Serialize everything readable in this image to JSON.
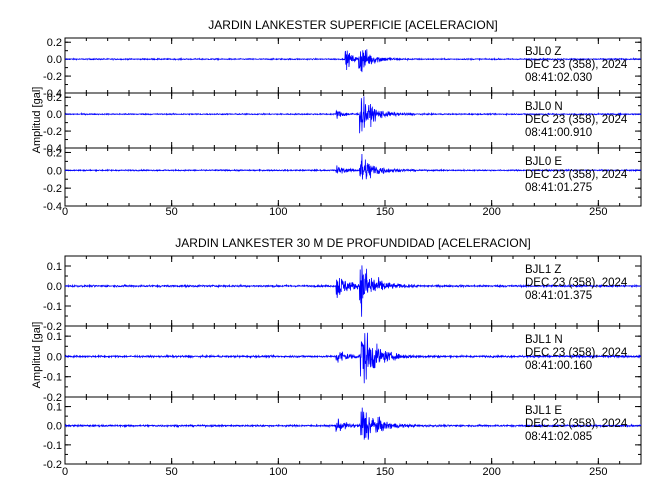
{
  "chart_data": [
    {
      "type": "line",
      "title": "JARDIN LANKESTER SUPERFICIE [ACELERACION]",
      "ylabel": "Amplitud [gal]",
      "xlim": [
        0,
        270
      ],
      "x_ticks": [
        "0",
        "50",
        "100",
        "150",
        "200",
        "250"
      ],
      "series": [
        {
          "name": "BJL0 Z",
          "date": "DEC 23 (358), 2024",
          "time": "08:41:02.030",
          "ylim": [
            -0.4,
            0.25
          ],
          "y_ticks": [
            "0.2",
            "0.0",
            "-0.2",
            "-0.4"
          ],
          "noise": 0.006,
          "events": [
            {
              "t": 131,
              "peak": 0.13,
              "decay": 3
            },
            {
              "t": 137.5,
              "peak": 0.2,
              "decay": 5
            }
          ]
        },
        {
          "name": "BJL0 N",
          "date": "DEC 23 (358), 2024",
          "time": "08:41:00.910",
          "ylim": [
            -0.4,
            0.25
          ],
          "y_ticks": [
            "0.2",
            "0.0",
            "-0.2",
            "-0.4"
          ],
          "noise": 0.006,
          "events": [
            {
              "t": 127,
              "peak": 0.05,
              "decay": 4
            },
            {
              "t": 138,
              "peak": 0.22,
              "decay": 6
            }
          ]
        },
        {
          "name": "BJL0 E",
          "date": "DEC 23 (358), 2024",
          "time": "08:41:01.275",
          "ylim": [
            -0.4,
            0.25
          ],
          "y_ticks": [
            "0.2",
            "0.0",
            "-0.2",
            "-0.4"
          ],
          "noise": 0.006,
          "events": [
            {
              "t": 127,
              "peak": 0.05,
              "decay": 4
            },
            {
              "t": 138,
              "peak": 0.2,
              "decay": 6
            }
          ]
        }
      ]
    },
    {
      "type": "line",
      "title": "JARDIN LANKESTER 30 M DE PROFUNDIDAD [ACELERACION]",
      "ylabel": "Amplitud [gal]",
      "xlim": [
        0,
        270
      ],
      "x_ticks": [
        "0",
        "50",
        "100",
        "150",
        "200",
        "250"
      ],
      "series": [
        {
          "name": "BJL1 Z",
          "date": "DEC 23 (358), 2024",
          "time": "08:41:01.375",
          "ylim": [
            -0.2,
            0.15
          ],
          "y_ticks": [
            "0.1",
            "0.0",
            "-0.1",
            "-0.2"
          ],
          "noise": 0.004,
          "events": [
            {
              "t": 127,
              "peak": 0.07,
              "decay": 5
            },
            {
              "t": 138,
              "peak": 0.13,
              "decay": 6
            }
          ]
        },
        {
          "name": "BJL1 N",
          "date": "DEC 23 (358), 2024",
          "time": "08:41:00.160",
          "ylim": [
            -0.2,
            0.15
          ],
          "y_ticks": [
            "0.1",
            "0.0",
            "-0.1",
            "-0.2"
          ],
          "noise": 0.004,
          "events": [
            {
              "t": 127,
              "peak": 0.04,
              "decay": 5
            },
            {
              "t": 138.5,
              "peak": 0.16,
              "decay": 6
            }
          ]
        },
        {
          "name": "BJL1 E",
          "date": "DEC 23 (358), 2024",
          "time": "08:41:02.085",
          "ylim": [
            -0.2,
            0.15
          ],
          "y_ticks": [
            "0.1",
            "0.0",
            "-0.1",
            "-0.2"
          ],
          "noise": 0.004,
          "events": [
            {
              "t": 127,
              "peak": 0.03,
              "decay": 5
            },
            {
              "t": 138.5,
              "peak": 0.13,
              "decay": 6
            }
          ]
        }
      ]
    }
  ],
  "colors": {
    "trace": "#0000ff",
    "axes": "#000000",
    "background": "#ffffff"
  }
}
